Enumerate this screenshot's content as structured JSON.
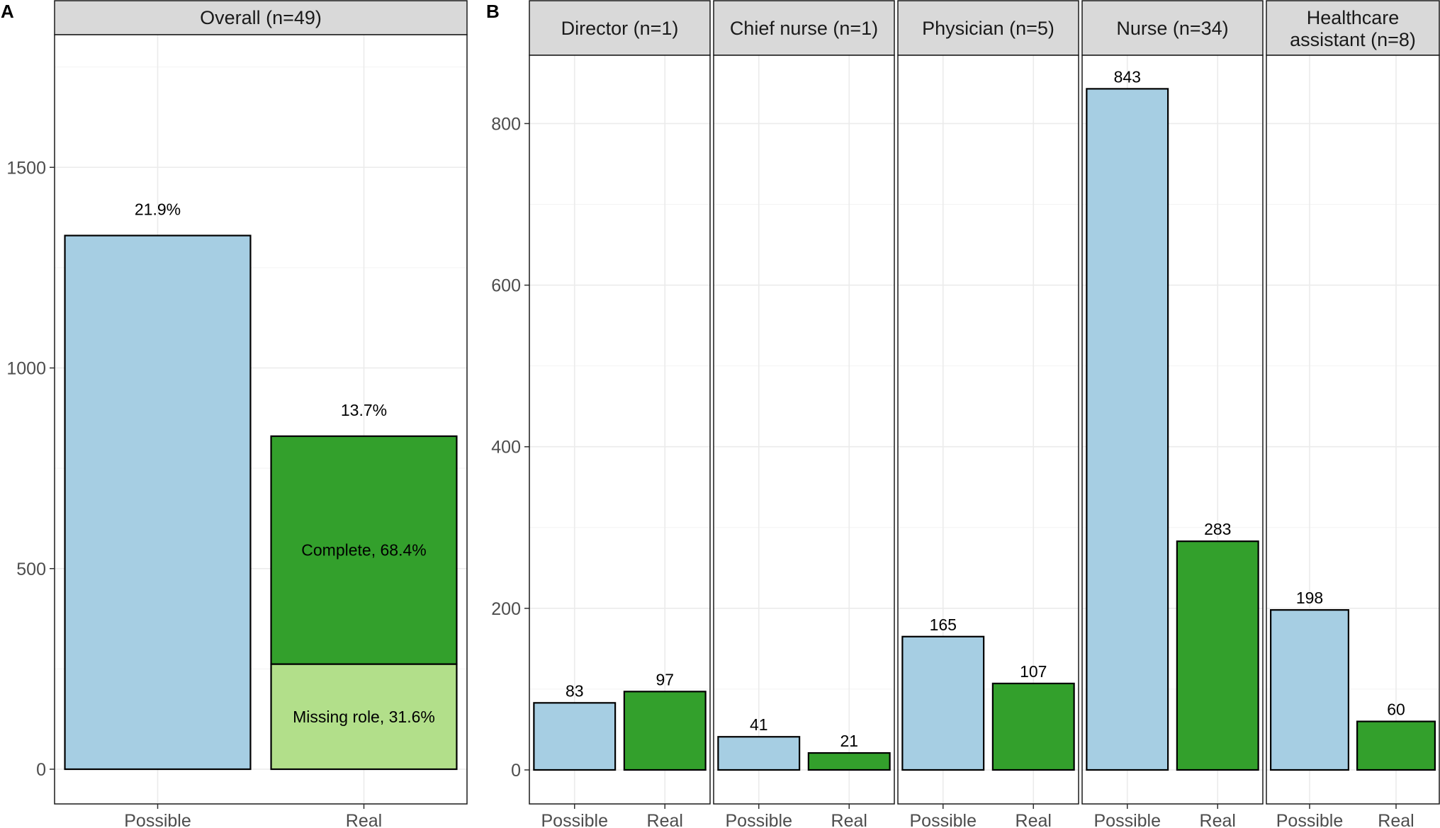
{
  "panel_a": {
    "letter": "A",
    "strip": "Overall (n=49)",
    "y_ticks": [
      "0",
      "500",
      "1000",
      "1500"
    ],
    "x_labels": [
      "Possible",
      "Real"
    ]
  },
  "panel_b": {
    "letter": "B",
    "y_ticks": [
      "0",
      "200",
      "400",
      "600",
      "800"
    ]
  },
  "colors": {
    "possible": "#a6cee3",
    "real": "#33a02c",
    "missing_role": "#b2df8a",
    "strip_fill": "#d9d9d9",
    "grid": "#ebebeb"
  },
  "chart_data": [
    {
      "type": "bar",
      "panel": "A",
      "title": "Overall (n=49)",
      "categories": [
        "Possible",
        "Real"
      ],
      "ylim": [
        0,
        1750
      ],
      "grid": true,
      "bars": [
        {
          "category": "Possible",
          "total": 1330,
          "label": "21.9%",
          "segments": [
            {
              "name": "",
              "value": 1330,
              "color": "#a6cee3",
              "label": ""
            }
          ]
        },
        {
          "category": "Real",
          "total": 830,
          "label": "13.7%",
          "segments": [
            {
              "name": "Missing role",
              "value": 262,
              "color": "#b2df8a",
              "label": "Missing role, 31.6%"
            },
            {
              "name": "Complete",
              "value": 568,
              "color": "#33a02c",
              "label": "Complete, 68.4%"
            }
          ]
        }
      ]
    },
    {
      "type": "bar",
      "panel": "B",
      "categories": [
        "Possible",
        "Real"
      ],
      "ylim": [
        0,
        880
      ],
      "grid": true,
      "facets": [
        {
          "title": [
            "Director (n=1)"
          ],
          "values": [
            83,
            97
          ],
          "labels": [
            "83",
            "97"
          ]
        },
        {
          "title": [
            "Chief nurse (n=1)"
          ],
          "values": [
            41,
            21
          ],
          "labels": [
            "41",
            "21"
          ]
        },
        {
          "title": [
            "Physician (n=5)"
          ],
          "values": [
            165,
            107
          ],
          "labels": [
            "165",
            "107"
          ]
        },
        {
          "title": [
            "Nurse (n=34)"
          ],
          "values": [
            843,
            283
          ],
          "labels": [
            "843",
            "283"
          ]
        },
        {
          "title": [
            "Healthcare",
            "assistant (n=8)"
          ],
          "values": [
            198,
            60
          ],
          "labels": [
            "198",
            "60"
          ]
        }
      ]
    }
  ]
}
